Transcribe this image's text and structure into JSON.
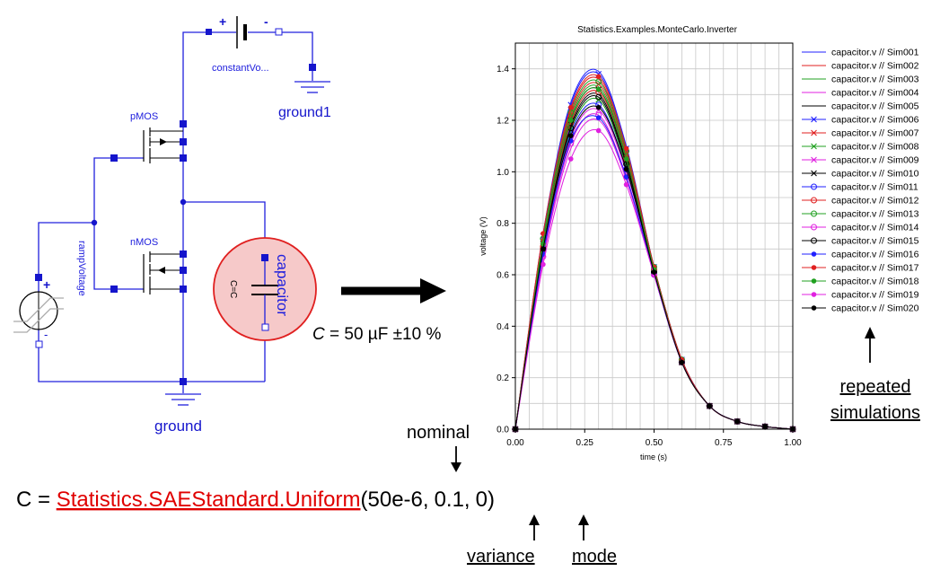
{
  "circuit": {
    "battery_label": "constantVo...",
    "battery_plus": "+",
    "battery_minus": "-",
    "ground1_label": "ground1",
    "pmos_label": "pMOS",
    "nmos_label": "nMOS",
    "ramp_label": "rampVoltage",
    "ramp_plus": "+",
    "ramp_minus": "-",
    "capacitor_label": "capacitor",
    "capacitor_param": "C=C",
    "ground_label": "ground"
  },
  "equation": {
    "c_value": "C = 50 µF ±10 %",
    "prefix": "C = ",
    "function": "Statistics.SAEStandard.Uniform",
    "args_open": "(",
    "arg1": "50e-6,",
    "arg2": "0.1,",
    "arg3": "0",
    "args_close": ")"
  },
  "annotations": {
    "nominal": "nominal",
    "variance": "variance",
    "mode": "mode",
    "repeated_line1": "repeated",
    "repeated_line2": "simulations"
  },
  "colors": {
    "circuit": "#2020dd",
    "highlight_fill": "#f6c9c9",
    "highlight_stroke": "#e02020",
    "function_text": "#e00000",
    "grid": "#c8c8c8"
  },
  "chart_data": {
    "type": "line",
    "title": "Statistics.Examples.MonteCarlo.Inverter",
    "xlabel": "time (s)",
    "ylabel": "voltage (V)",
    "xlim": [
      0,
      1
    ],
    "ylim": [
      0,
      1.5
    ],
    "xticks": [
      "0.00",
      "0.25",
      "0.50",
      "0.75",
      "1.00"
    ],
    "yticks": [
      "0.0",
      "0.2",
      "0.4",
      "0.6",
      "0.8",
      "1.0",
      "1.2",
      "1.4"
    ],
    "grid": true,
    "legend_position": "right",
    "x": [
      0,
      0.1,
      0.2,
      0.3,
      0.4,
      0.5,
      0.6,
      0.7,
      0.8,
      0.9,
      1.0
    ],
    "series": [
      {
        "name": "capacitor.v // Sim001",
        "color": "#2020ff",
        "marker": "none",
        "values": [
          0,
          0.76,
          1.27,
          1.39,
          1.1,
          0.63,
          0.27,
          0.09,
          0.03,
          0.01,
          0
        ]
      },
      {
        "name": "capacitor.v // Sim002",
        "color": "#e02020",
        "marker": "none",
        "values": [
          0,
          0.74,
          1.24,
          1.36,
          1.08,
          0.63,
          0.27,
          0.09,
          0.03,
          0.01,
          0
        ]
      },
      {
        "name": "capacitor.v // Sim003",
        "color": "#20a020",
        "marker": "none",
        "values": [
          0,
          0.72,
          1.21,
          1.33,
          1.06,
          0.62,
          0.26,
          0.09,
          0.03,
          0.01,
          0
        ]
      },
      {
        "name": "capacitor.v // Sim004",
        "color": "#e020e0",
        "marker": "none",
        "values": [
          0,
          0.66,
          1.09,
          1.2,
          0.97,
          0.6,
          0.26,
          0.09,
          0.03,
          0.01,
          0
        ]
      },
      {
        "name": "capacitor.v // Sim005",
        "color": "#000000",
        "marker": "none",
        "values": [
          0,
          0.71,
          1.18,
          1.3,
          1.04,
          0.62,
          0.26,
          0.09,
          0.03,
          0.01,
          0
        ]
      },
      {
        "name": "capacitor.v // Sim006",
        "color": "#2020ff",
        "marker": "x",
        "values": [
          0,
          0.75,
          1.26,
          1.38,
          1.09,
          0.63,
          0.27,
          0.09,
          0.03,
          0.01,
          0
        ]
      },
      {
        "name": "capacitor.v // Sim007",
        "color": "#e02020",
        "marker": "x",
        "values": [
          0,
          0.73,
          1.22,
          1.34,
          1.07,
          0.62,
          0.26,
          0.09,
          0.03,
          0.01,
          0
        ]
      },
      {
        "name": "capacitor.v // Sim008",
        "color": "#20a020",
        "marker": "x",
        "values": [
          0,
          0.7,
          1.16,
          1.28,
          1.02,
          0.61,
          0.26,
          0.09,
          0.03,
          0.01,
          0
        ]
      },
      {
        "name": "capacitor.v // Sim009",
        "color": "#e020e0",
        "marker": "x",
        "values": [
          0,
          0.68,
          1.13,
          1.24,
          1.0,
          0.61,
          0.26,
          0.09,
          0.03,
          0.01,
          0
        ]
      },
      {
        "name": "capacitor.v // Sim010",
        "color": "#000000",
        "marker": "x",
        "values": [
          0,
          0.72,
          1.2,
          1.32,
          1.05,
          0.62,
          0.26,
          0.09,
          0.03,
          0.01,
          0
        ]
      },
      {
        "name": "capacitor.v // Sim011",
        "color": "#2020ff",
        "marker": "o",
        "values": [
          0,
          0.69,
          1.15,
          1.26,
          1.01,
          0.61,
          0.26,
          0.09,
          0.03,
          0.01,
          0
        ]
      },
      {
        "name": "capacitor.v // Sim012",
        "color": "#e02020",
        "marker": "o",
        "values": [
          0,
          0.71,
          1.19,
          1.31,
          1.05,
          0.62,
          0.26,
          0.09,
          0.03,
          0.01,
          0
        ]
      },
      {
        "name": "capacitor.v // Sim013",
        "color": "#20a020",
        "marker": "o",
        "values": [
          0,
          0.74,
          1.23,
          1.35,
          1.08,
          0.63,
          0.27,
          0.09,
          0.03,
          0.01,
          0
        ]
      },
      {
        "name": "capacitor.v // Sim014",
        "color": "#e020e0",
        "marker": "o",
        "values": [
          0,
          0.67,
          1.11,
          1.22,
          0.98,
          0.6,
          0.26,
          0.09,
          0.03,
          0.01,
          0
        ]
      },
      {
        "name": "capacitor.v // Sim015",
        "color": "#000000",
        "marker": "o",
        "values": [
          0,
          0.7,
          1.17,
          1.29,
          1.03,
          0.61,
          0.26,
          0.09,
          0.03,
          0.01,
          0
        ]
      },
      {
        "name": "capacitor.v // Sim016",
        "color": "#2020ff",
        "marker": "dot",
        "values": [
          0,
          0.68,
          1.12,
          1.21,
          0.98,
          0.6,
          0.26,
          0.09,
          0.03,
          0.01,
          0
        ]
      },
      {
        "name": "capacitor.v // Sim017",
        "color": "#e02020",
        "marker": "dot",
        "values": [
          0,
          0.76,
          1.25,
          1.37,
          1.09,
          0.63,
          0.27,
          0.09,
          0.03,
          0.01,
          0
        ]
      },
      {
        "name": "capacitor.v // Sim018",
        "color": "#20a020",
        "marker": "dot",
        "values": [
          0,
          0.72,
          1.2,
          1.32,
          1.05,
          0.62,
          0.26,
          0.09,
          0.03,
          0.01,
          0
        ]
      },
      {
        "name": "capacitor.v // Sim019",
        "color": "#e020e0",
        "marker": "dot",
        "values": [
          0,
          0.64,
          1.05,
          1.16,
          0.95,
          0.6,
          0.26,
          0.09,
          0.03,
          0.01,
          0
        ]
      },
      {
        "name": "capacitor.v // Sim020",
        "color": "#000000",
        "marker": "dot",
        "values": [
          0,
          0.7,
          1.14,
          1.25,
          1.01,
          0.61,
          0.26,
          0.09,
          0.03,
          0.01,
          0
        ]
      }
    ]
  }
}
